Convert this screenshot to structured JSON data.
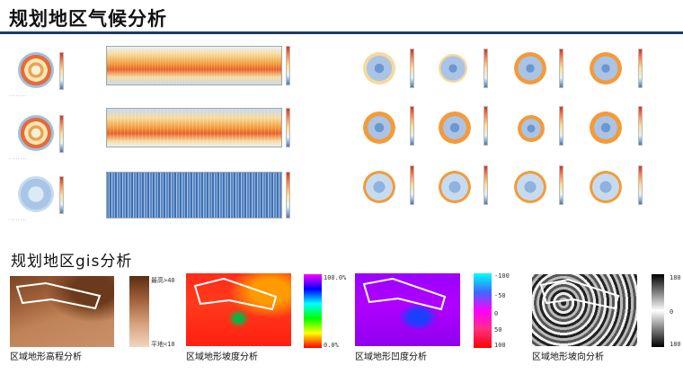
{
  "header": {
    "title": "规划地区气候分析"
  },
  "section2": {
    "title": "规划地区gis分析"
  },
  "gis": [
    {
      "caption": "区域地形高程分析",
      "legend_top": "最高>40",
      "legend_bottom": "平地<10"
    },
    {
      "caption": "区域地形坡度分析",
      "legend_top": "100.0%",
      "legend_bottom": "0.0%"
    },
    {
      "caption": "区域地形凹度分析",
      "legend_top": "-100",
      "legend_mid1": "-50",
      "legend_mid2": "0",
      "legend_mid3": "50",
      "legend_bottom": "100"
    },
    {
      "caption": "区域地形坡向分析",
      "legend_top": "180",
      "legend_mid": "0",
      "legend_bottom": "180"
    }
  ],
  "colors": {
    "title_rule": "#1f3b63",
    "warm": "#e8622a",
    "cool": "#5b86c4"
  }
}
